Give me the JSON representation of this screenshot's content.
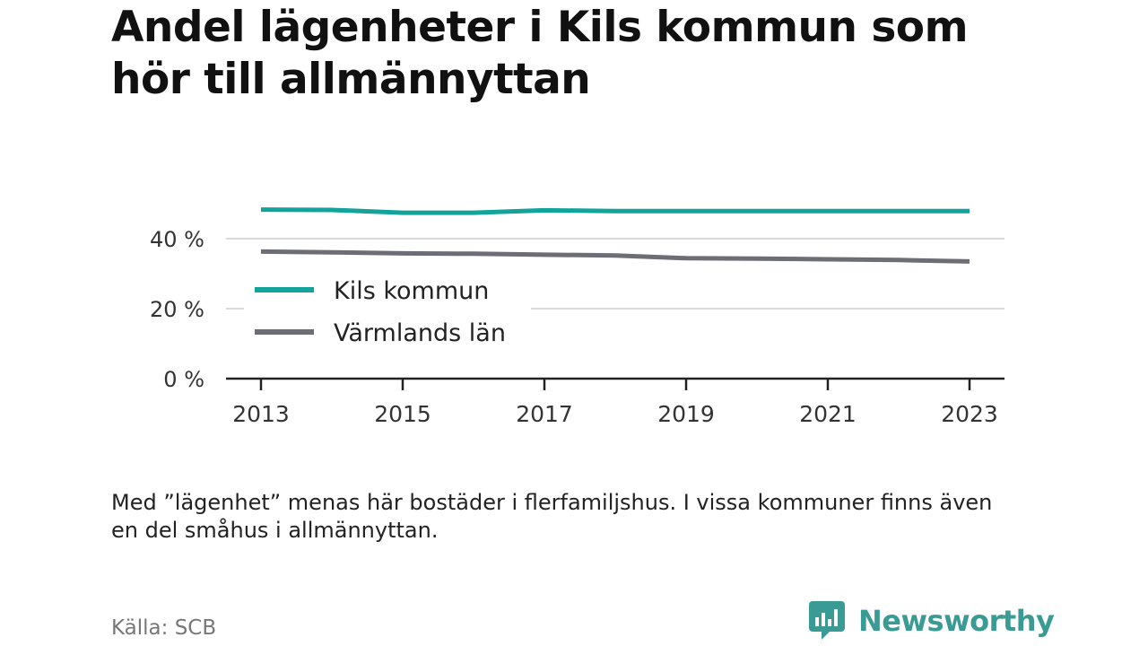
{
  "title": "Andel lägenheter i Kils kommun som hör till allmännyttan",
  "note": "Med ”lägenhet” menas här bostäder i flerfamiljshus. I vissa kommuner finns även en del småhus i allmännyttan.",
  "source": "Källa: SCB",
  "brand": {
    "name": "Newsworthy",
    "icon": "newsworthy-logo-icon",
    "color": "#3a9b95"
  },
  "chart_data": {
    "type": "line",
    "title": "Andel lägenheter i Kils kommun som hör till allmännyttan",
    "x": [
      2013,
      2014,
      2015,
      2016,
      2017,
      2018,
      2019,
      2020,
      2021,
      2022,
      2023
    ],
    "x_ticks": [
      "2013",
      "2015",
      "2017",
      "2019",
      "2021",
      "2023"
    ],
    "y_ticks": [
      "0 %",
      "20 %",
      "40 %"
    ],
    "ylim": [
      0,
      48
    ],
    "grid": true,
    "legend_position": "left",
    "series": [
      {
        "name": "Kils kommun",
        "color": "#12a39b",
        "values": [
          48.3,
          48.2,
          47.4,
          47.4,
          48.1,
          47.9,
          47.9,
          47.9,
          47.9,
          47.9,
          47.9
        ]
      },
      {
        "name": "Värmlands län",
        "color": "#6d6d76",
        "values": [
          36.3,
          36.1,
          35.8,
          35.7,
          35.4,
          35.2,
          34.4,
          34.3,
          34.1,
          33.9,
          33.5
        ]
      }
    ]
  }
}
